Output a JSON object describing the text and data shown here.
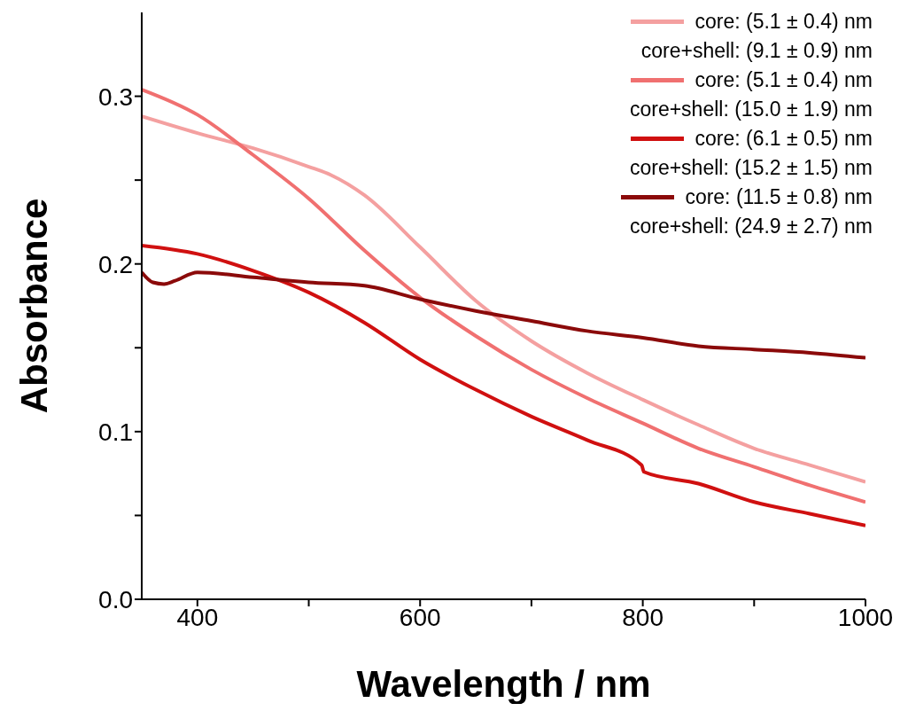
{
  "chart_data": {
    "type": "line",
    "xlabel": "Wavelength / nm",
    "ylabel": "Absorbance",
    "xlim": [
      350,
      1000
    ],
    "xticks": [
      400,
      {
        "value": 500,
        "label": null
      },
      600,
      {
        "value": 700,
        "label": null
      },
      800,
      {
        "value": 900,
        "label": null
      },
      1000
    ],
    "ylim": [
      0,
      0.35
    ],
    "yticks": [
      "0.0",
      {
        "value": 0.05,
        "label": null
      },
      0.1,
      {
        "value": 0.15,
        "label": null
      },
      0.2,
      {
        "value": 0.25,
        "label": null
      },
      0.3
    ],
    "grid": false,
    "legend": "top right",
    "marker": "none",
    "line_style": "solid",
    "series": [
      {
        "name": "core: (5.1 ± 0.4) nm\ncore+shell: (9.1 ± 0.9) nm",
        "color": "#f4a0a0",
        "x": [
          350,
          400,
          450,
          500,
          520,
          550,
          600,
          650,
          700,
          750,
          800,
          850,
          900,
          950,
          1000
        ],
        "values": [
          0.288,
          0.278,
          0.269,
          0.258,
          0.253,
          0.241,
          0.21,
          0.178,
          0.154,
          0.135,
          0.119,
          0.104,
          0.09,
          0.08,
          0.07
        ]
      },
      {
        "name": "core: (5.1 ± 0.4) nm\ncore+shell: (15.0 ± 1.9) nm",
        "color": "#f07070",
        "x": [
          350,
          400,
          450,
          500,
          550,
          600,
          650,
          700,
          750,
          800,
          850,
          900,
          950,
          1000
        ],
        "values": [
          0.304,
          0.289,
          0.265,
          0.239,
          0.208,
          0.18,
          0.157,
          0.137,
          0.12,
          0.105,
          0.09,
          0.079,
          0.068,
          0.058
        ]
      },
      {
        "name": "core: (6.1 ± 0.5) nm\ncore+shell: (15.2 ± 1.5) nm",
        "color": "#d01010",
        "x": [
          350,
          400,
          450,
          500,
          550,
          600,
          650,
          700,
          750,
          799,
          801,
          850,
          900,
          950,
          1000
        ],
        "values": [
          0.211,
          0.206,
          0.196,
          0.183,
          0.165,
          0.143,
          0.125,
          0.109,
          0.095,
          0.08,
          0.076,
          0.069,
          0.058,
          0.051,
          0.044
        ]
      },
      {
        "name": "core: (11.5 ± 0.8) nm\ncore+shell: (24.9 ± 2.7) nm",
        "color": "#8b0a0a",
        "x": [
          350,
          360,
          370,
          380,
          400,
          450,
          500,
          550,
          600,
          650,
          700,
          750,
          800,
          850,
          900,
          950,
          1000
        ],
        "values": [
          0.195,
          0.189,
          0.188,
          0.19,
          0.195,
          0.192,
          0.189,
          0.187,
          0.179,
          0.172,
          0.166,
          0.16,
          0.156,
          0.151,
          0.149,
          0.147,
          0.144
        ]
      }
    ]
  }
}
